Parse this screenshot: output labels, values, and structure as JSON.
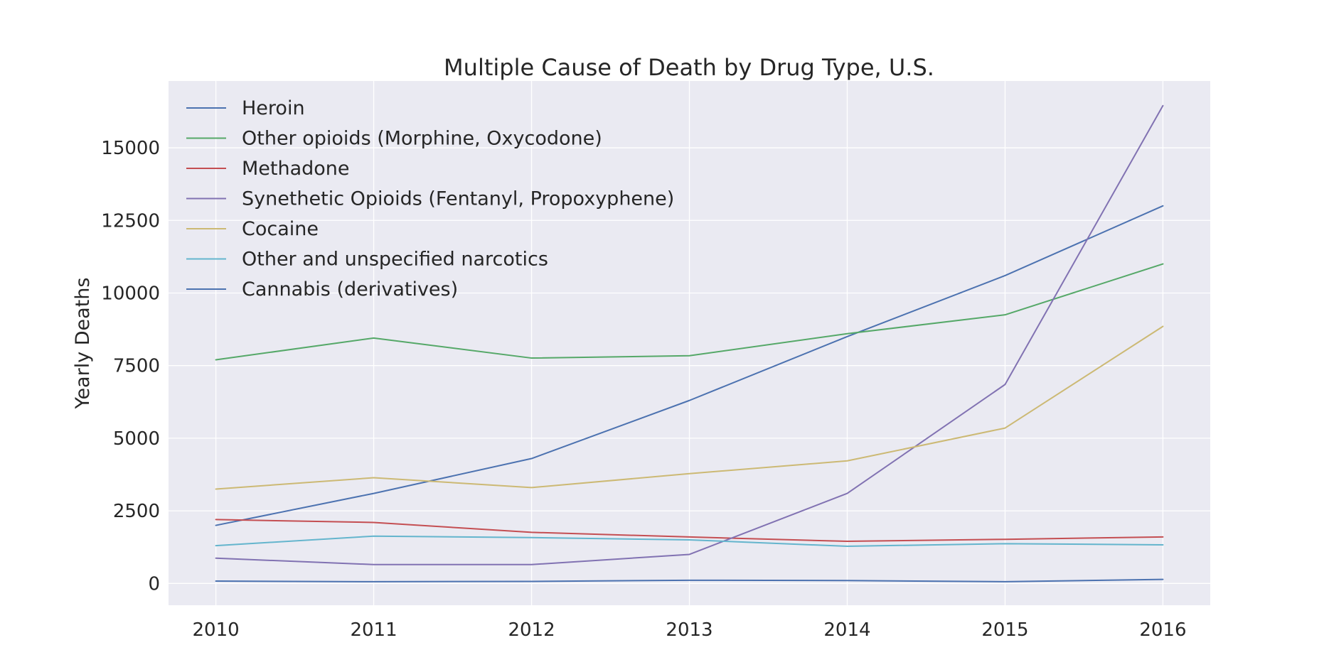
{
  "chart_data": {
    "type": "line",
    "title": "Multiple Cause of Death by Drug Type, U.S.",
    "xlabel": "",
    "ylabel": "Yearly Deaths",
    "x": [
      2010,
      2011,
      2012,
      2013,
      2014,
      2015,
      2016
    ],
    "x_ticks": [
      "2010",
      "2011",
      "2012",
      "2013",
      "2014",
      "2015",
      "2016"
    ],
    "y_ticks": [
      "0",
      "2500",
      "5000",
      "7500",
      "10000",
      "12500",
      "15000"
    ],
    "y_tick_values": [
      0,
      2500,
      5000,
      7500,
      10000,
      12500,
      15000
    ],
    "xlim": [
      2009.7,
      2016.3
    ],
    "ylim": [
      -750,
      17300
    ],
    "grid": true,
    "legend_position": "top-left",
    "series": [
      {
        "name": "Heroin",
        "color": "#4c72b0",
        "values": [
          2000,
          3100,
          4300,
          6300,
          8500,
          10600,
          13000
        ]
      },
      {
        "name": "Other opioids (Morphine, Oxycodone)",
        "color": "#55a868",
        "values": [
          7700,
          8450,
          7760,
          7840,
          8600,
          9250,
          11000
        ]
      },
      {
        "name": "Methadone",
        "color": "#c44e52",
        "values": [
          2200,
          2100,
          1760,
          1600,
          1450,
          1520,
          1600
        ]
      },
      {
        "name": "Synethetic Opioids (Fentanyl, Propoxyphene)",
        "color": "#8172b2",
        "values": [
          870,
          650,
          650,
          1000,
          3100,
          6850,
          16450
        ]
      },
      {
        "name": "Cocaine",
        "color": "#ccb974",
        "values": [
          3250,
          3640,
          3300,
          3780,
          4220,
          5350,
          8850
        ]
      },
      {
        "name": "Other and unspecified narcotics",
        "color": "#64b5cd",
        "values": [
          1300,
          1630,
          1580,
          1500,
          1280,
          1370,
          1330
        ]
      },
      {
        "name": "Cannabis (derivatives)",
        "color": "#4c72b0",
        "values": [
          80,
          60,
          70,
          110,
          100,
          60,
          140
        ]
      }
    ]
  }
}
